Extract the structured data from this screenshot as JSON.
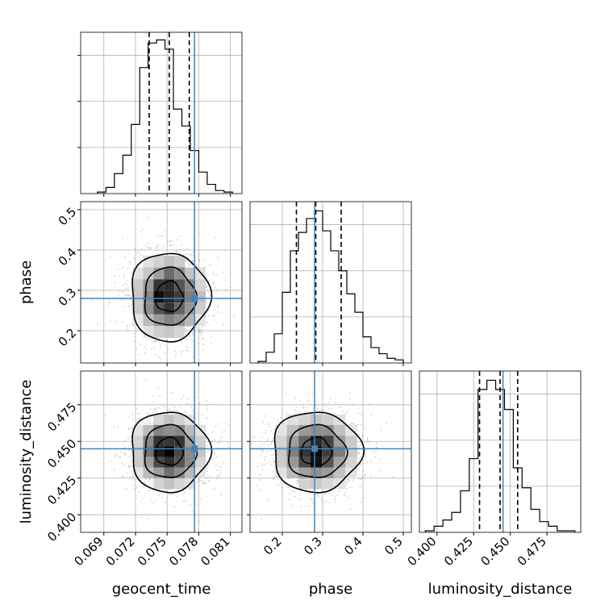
{
  "figure": {
    "type": "corner-plot",
    "parameters": [
      "geocent_time",
      "phase",
      "luminosity_distance"
    ],
    "colors": {
      "truth": "#4682b4",
      "hist": "#000000",
      "grid": "#b0b0b0",
      "points": "#9a9a9a"
    }
  },
  "chart_data": [
    {
      "type": "histogram",
      "panel": "geocent_time",
      "xlabel": "geocent_time",
      "xlim": [
        0.0668,
        0.0821
      ],
      "xticks": [
        0.069,
        0.072,
        0.075,
        0.078,
        0.081
      ],
      "xtick_labels": [
        "0.069",
        "0.072",
        "0.075",
        "0.078",
        "0.081"
      ],
      "bin_edges": [
        0.0684,
        0.0692,
        0.07,
        0.0708,
        0.0716,
        0.0724,
        0.0732,
        0.074,
        0.0748,
        0.0756,
        0.0764,
        0.0772,
        0.078,
        0.0788,
        0.0796,
        0.0804,
        0.0812
      ],
      "counts": [
        0.01,
        0.04,
        0.13,
        0.25,
        0.45,
        0.82,
        0.98,
        1.0,
        0.94,
        0.55,
        0.44,
        0.28,
        0.14,
        0.06,
        0.02,
        0.01
      ],
      "quantiles": [
        0.0733,
        0.0752,
        0.0771
      ],
      "truth": 0.0776,
      "grid": true
    },
    {
      "type": "histogram",
      "panel": "phase",
      "xlabel": "phase",
      "xlim": [
        0.12,
        0.52
      ],
      "xticks": [
        0.2,
        0.3,
        0.4,
        0.5
      ],
      "xtick_labels": [
        "0.2",
        "0.3",
        "0.4",
        "0.5"
      ],
      "bin_edges": [
        0.14,
        0.16,
        0.18,
        0.2,
        0.22,
        0.24,
        0.26,
        0.28,
        0.3,
        0.32,
        0.34,
        0.36,
        0.38,
        0.4,
        0.42,
        0.44,
        0.46,
        0.48,
        0.5
      ],
      "counts": [
        0.01,
        0.07,
        0.19,
        0.46,
        0.73,
        0.85,
        0.94,
        0.99,
        0.86,
        0.73,
        0.6,
        0.45,
        0.33,
        0.17,
        0.1,
        0.06,
        0.03,
        0.02
      ],
      "quantiles": [
        0.235,
        0.283,
        0.346
      ],
      "truth": 0.28,
      "grid": true
    },
    {
      "type": "histogram",
      "panel": "luminosity_distance",
      "xlabel": "luminosity_distance",
      "xlim": [
        0.388,
        0.498
      ],
      "xticks": [
        0.4,
        0.425,
        0.45,
        0.475
      ],
      "xtick_labels": [
        "0.400",
        "0.425",
        "0.450",
        "0.475"
      ],
      "bin_edges": [
        0.392,
        0.398,
        0.404,
        0.41,
        0.416,
        0.422,
        0.428,
        0.434,
        0.44,
        0.446,
        0.452,
        0.458,
        0.464,
        0.47,
        0.476,
        0.482,
        0.488,
        0.494
      ],
      "counts": [
        0.01,
        0.04,
        0.08,
        0.13,
        0.27,
        0.48,
        0.93,
        0.99,
        0.93,
        0.8,
        0.42,
        0.29,
        0.15,
        0.07,
        0.04,
        0.01,
        0.01
      ],
      "quantiles": [
        0.429,
        0.443,
        0.455
      ],
      "truth": 0.445,
      "grid": true
    },
    {
      "type": "scatter-density",
      "x_param": "geocent_time",
      "y_param": "phase",
      "xlim": [
        0.0668,
        0.0821
      ],
      "ylim": [
        0.12,
        0.52
      ],
      "yticks": [
        0.2,
        0.3,
        0.4,
        0.5
      ],
      "ytick_labels": [
        "0.2",
        "0.3",
        "0.4",
        "0.5"
      ],
      "ylabel": "phase",
      "mean": [
        0.0752,
        0.284
      ],
      "sd": [
        0.0017,
        0.05
      ],
      "truth": [
        0.0776,
        0.28
      ],
      "grid": true
    },
    {
      "type": "scatter-density",
      "x_param": "geocent_time",
      "y_param": "luminosity_distance",
      "xlim": [
        0.0668,
        0.0821
      ],
      "ylim": [
        0.388,
        0.498
      ],
      "yticks": [
        0.4,
        0.425,
        0.45,
        0.475
      ],
      "ytick_labels": [
        "0.400",
        "0.425",
        "0.450",
        "0.475"
      ],
      "ylabel": "luminosity_distance",
      "mean": [
        0.0752,
        0.443
      ],
      "sd": [
        0.0017,
        0.0125
      ],
      "truth": [
        0.0776,
        0.445
      ],
      "grid": true
    },
    {
      "type": "scatter-density",
      "x_param": "phase",
      "y_param": "luminosity_distance",
      "xlim": [
        0.12,
        0.52
      ],
      "ylim": [
        0.388,
        0.498
      ],
      "mean": [
        0.284,
        0.443
      ],
      "sd": [
        0.05,
        0.0125
      ],
      "truth": [
        0.28,
        0.445
      ],
      "grid": true
    }
  ]
}
